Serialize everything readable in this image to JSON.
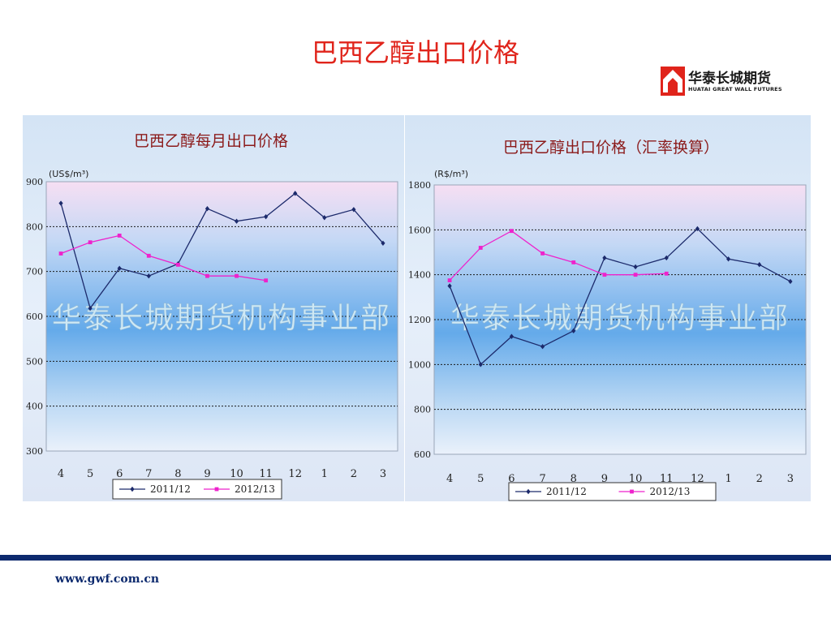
{
  "slide": {
    "title": "巴西乙醇出口价格",
    "logo_name": "华泰长城期货",
    "logo_sub": "HUATAI GREAT WALL FUTURES",
    "footer_url": "www.gwf.com.cn"
  },
  "colors": {
    "title": "#e0241b",
    "chart_title": "#8b1a1a",
    "series_2011": "#1c2a6b",
    "series_2012": "#ee22cc",
    "footer_bar": "#0d2a6e",
    "watermark": "#cfe9f5"
  },
  "chart_data": [
    {
      "type": "line",
      "title": "巴西乙醇每月出口价格",
      "ylabel": "(US$/m³)",
      "categories": [
        "4",
        "5",
        "6",
        "7",
        "8",
        "9",
        "10",
        "11",
        "12",
        "1",
        "2",
        "3"
      ],
      "yticks": [
        300,
        400,
        500,
        600,
        700,
        800,
        900
      ],
      "ylim": [
        300,
        900
      ],
      "grid": true,
      "legend_position": "bottom",
      "watermark": "华泰长城期货机构事业部",
      "series": [
        {
          "name": "2011/12",
          "values": [
            852,
            618,
            707,
            690,
            717,
            840,
            812,
            822,
            874,
            820,
            838,
            763
          ]
        },
        {
          "name": "2012/13",
          "values": [
            740,
            765,
            780,
            735,
            715,
            690,
            690,
            680,
            null,
            null,
            null,
            null
          ]
        }
      ]
    },
    {
      "type": "line",
      "title": "巴西乙醇出口价格（汇率换算）",
      "ylabel": "(R$/m³)",
      "categories": [
        "4",
        "5",
        "6",
        "7",
        "8",
        "9",
        "10",
        "11",
        "12",
        "1",
        "2",
        "3"
      ],
      "yticks": [
        600,
        800,
        1000,
        1200,
        1400,
        1600,
        1800
      ],
      "ylim": [
        600,
        1800
      ],
      "grid": true,
      "legend_position": "bottom",
      "watermark": "华泰长城期货机构事业部",
      "series": [
        {
          "name": "2011/12",
          "values": [
            1350,
            1000,
            1125,
            1080,
            1150,
            1475,
            1435,
            1475,
            1605,
            1470,
            1445,
            1370
          ]
        },
        {
          "name": "2012/13",
          "values": [
            1375,
            1520,
            1595,
            1495,
            1455,
            1400,
            1400,
            1405,
            null,
            null,
            null,
            null
          ]
        }
      ]
    }
  ]
}
